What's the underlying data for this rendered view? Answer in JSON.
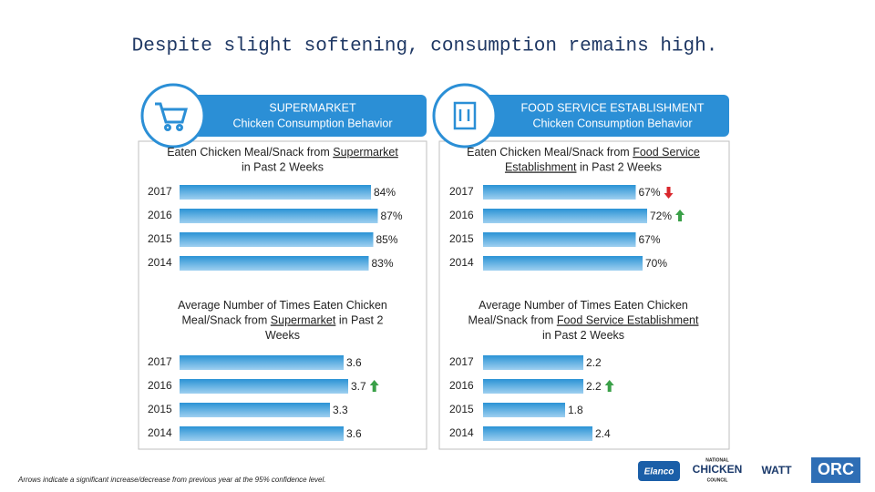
{
  "title": "Despite slight softening, consumption remains high.",
  "panels": [
    {
      "header": "SUPERMARKET",
      "subheader": "Chicken Consumption Behavior"
    },
    {
      "header": "FOOD SERVICE ESTABLISHMENT",
      "subheader": "Chicken Consumption Behavior"
    }
  ],
  "chart_data": [
    {
      "type": "bar",
      "orientation": "horizontal",
      "color": "#2a93d5",
      "title_lines": [
        [
          {
            "text": "Eaten Chicken Meal/Snack from "
          },
          {
            "text": "Supermarket",
            "underline": true
          }
        ],
        [
          {
            "text": "in Past 2 Weeks"
          }
        ]
      ],
      "categories": [
        "2017",
        "2016",
        "2015",
        "2014"
      ],
      "values": [
        84,
        87,
        85,
        83
      ],
      "value_labels": [
        "84%",
        "87%",
        "85%",
        "83%"
      ],
      "xlim": [
        0,
        100
      ],
      "arrows": []
    },
    {
      "type": "bar",
      "orientation": "horizontal",
      "color": "#2a93d5",
      "title_lines": [
        [
          {
            "text": "Eaten Chicken Meal/Snack from "
          },
          {
            "text": "Food Service",
            "underline": true
          }
        ],
        [
          {
            "text": "Establishment",
            "underline": true
          },
          {
            "text": " in Past 2 Weeks"
          }
        ]
      ],
      "categories": [
        "2017",
        "2016",
        "2015",
        "2014"
      ],
      "values": [
        67,
        72,
        67,
        70
      ],
      "value_labels": [
        "67%",
        "72%",
        "67%",
        "70%"
      ],
      "xlim": [
        0,
        100
      ],
      "arrows": [
        {
          "category": "2017",
          "direction": "down",
          "color": "#d9262c"
        },
        {
          "category": "2016",
          "direction": "up",
          "color": "#3aa048"
        }
      ]
    },
    {
      "type": "bar",
      "orientation": "horizontal",
      "color": "#2a93d5",
      "title_lines": [
        [
          {
            "text": "Average Number of Times Eaten Chicken"
          }
        ],
        [
          {
            "text": "Meal/Snack from "
          },
          {
            "text": "Supermarket",
            "underline": true
          },
          {
            "text": " in Past 2"
          }
        ],
        [
          {
            "text": "Weeks"
          }
        ]
      ],
      "categories": [
        "2017",
        "2016",
        "2015",
        "2014"
      ],
      "values": [
        3.6,
        3.7,
        3.3,
        3.6
      ],
      "xlim": [
        0,
        5
      ],
      "arrows": [
        {
          "category": "2016",
          "direction": "up",
          "color": "#3aa048"
        }
      ]
    },
    {
      "type": "bar",
      "orientation": "horizontal",
      "color": "#2a93d5",
      "title_lines": [
        [
          {
            "text": "Average Number of Times Eaten Chicken"
          }
        ],
        [
          {
            "text": "Meal/Snack from "
          },
          {
            "text": "Food Service Establishment",
            "underline": true
          }
        ],
        [
          {
            "text": "in Past 2 Weeks"
          }
        ]
      ],
      "categories": [
        "2017",
        "2016",
        "2015",
        "2014"
      ],
      "values": [
        2.2,
        2.2,
        1.8,
        2.4
      ],
      "xlim": [
        0,
        5
      ],
      "arrows": [
        {
          "category": "2016",
          "direction": "up",
          "color": "#3aa048"
        }
      ]
    }
  ],
  "footnote": "Arrows indicate a significant increase/decrease from previous year at the 95% confidence level.",
  "logos": [
    "Elanco",
    "NATIONAL",
    "CHICKEN",
    "COUNCIL",
    "WATT",
    "ORC"
  ]
}
